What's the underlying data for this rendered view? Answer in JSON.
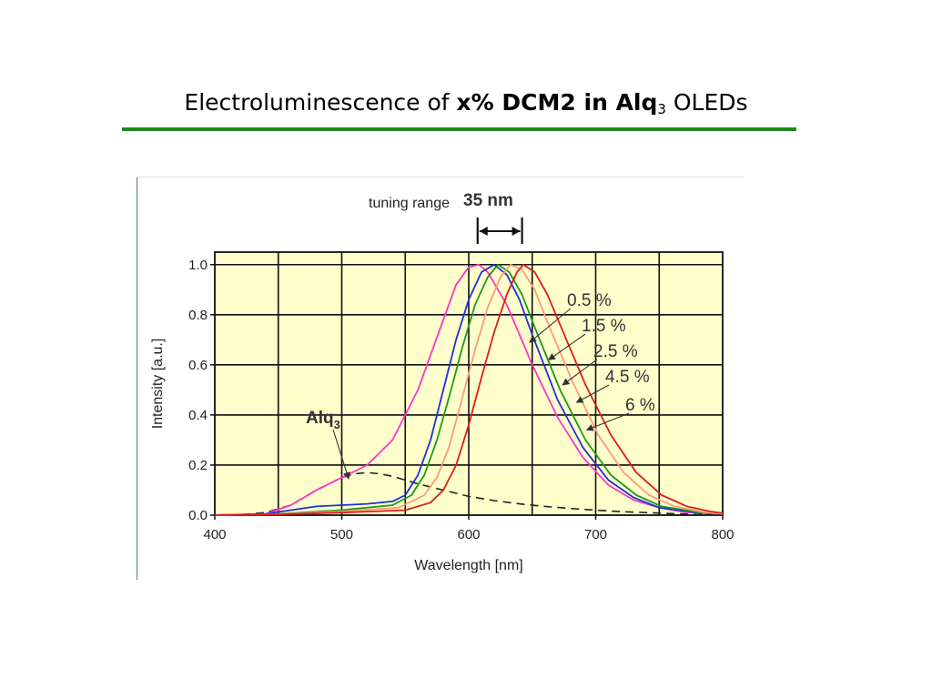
{
  "slide": {
    "title_pre": "Electroluminescence of ",
    "title_bold": "x% DCM2 in Alq",
    "title_sub": "3",
    "title_post": " OLEDs"
  },
  "chart_data": {
    "type": "line",
    "xlabel": "Wavelength [nm]",
    "ylabel": "Intensity [a.u.]",
    "xlim": [
      400,
      800
    ],
    "ylim": [
      0,
      1.05
    ],
    "xticks": [
      400,
      500,
      600,
      700,
      800
    ],
    "xtick_labels": [
      "400",
      "500",
      "600",
      "700",
      "800"
    ],
    "yticks": [
      0,
      0.2,
      0.4,
      0.6,
      0.8,
      1.0
    ],
    "ytick_labels": [
      "0.0",
      "0.2",
      "0.4",
      "0.6",
      "0.8",
      "1.0"
    ],
    "grid": true,
    "tuning_range_label": "tuning range",
    "tuning_range_value": "35 nm",
    "tuning_range_nm": [
      607,
      642
    ],
    "series": [
      {
        "name": "Alq",
        "name_sub": "3",
        "color": "#222222",
        "dashed": true,
        "points": [
          [
            400,
            0
          ],
          [
            420,
            0.002
          ],
          [
            440,
            0.01
          ],
          [
            460,
            0.04
          ],
          [
            480,
            0.1
          ],
          [
            500,
            0.15
          ],
          [
            510,
            0.165
          ],
          [
            520,
            0.17
          ],
          [
            530,
            0.165
          ],
          [
            540,
            0.155
          ],
          [
            560,
            0.125
          ],
          [
            580,
            0.1
          ],
          [
            600,
            0.075
          ],
          [
            620,
            0.058
          ],
          [
            640,
            0.045
          ],
          [
            660,
            0.035
          ],
          [
            680,
            0.027
          ],
          [
            700,
            0.02
          ],
          [
            720,
            0.014
          ],
          [
            740,
            0.01
          ],
          [
            760,
            0.006
          ],
          [
            780,
            0.003
          ],
          [
            800,
            0.001
          ]
        ]
      },
      {
        "name": "0.5 %",
        "color": "#ff33cc",
        "dashed": false,
        "label_anchor": [
          648,
          0.69
        ],
        "points": [
          [
            400,
            0
          ],
          [
            440,
            0.005
          ],
          [
            460,
            0.04
          ],
          [
            480,
            0.1
          ],
          [
            500,
            0.15
          ],
          [
            520,
            0.2
          ],
          [
            540,
            0.3
          ],
          [
            560,
            0.5
          ],
          [
            580,
            0.78
          ],
          [
            590,
            0.92
          ],
          [
            600,
            0.99
          ],
          [
            608,
            1.0
          ],
          [
            615,
            0.97
          ],
          [
            630,
            0.84
          ],
          [
            650,
            0.6
          ],
          [
            670,
            0.39
          ],
          [
            690,
            0.23
          ],
          [
            710,
            0.12
          ],
          [
            730,
            0.06
          ],
          [
            750,
            0.03
          ],
          [
            770,
            0.012
          ],
          [
            800,
            0.004
          ]
        ]
      },
      {
        "name": "1.5 %",
        "color": "#1f2fe0",
        "dashed": false,
        "label_anchor": [
          663,
          0.62
        ],
        "points": [
          [
            400,
            0
          ],
          [
            440,
            0.005
          ],
          [
            460,
            0.02
          ],
          [
            480,
            0.035
          ],
          [
            500,
            0.04
          ],
          [
            520,
            0.045
          ],
          [
            540,
            0.055
          ],
          [
            550,
            0.08
          ],
          [
            560,
            0.16
          ],
          [
            570,
            0.3
          ],
          [
            580,
            0.5
          ],
          [
            590,
            0.7
          ],
          [
            600,
            0.86
          ],
          [
            610,
            0.97
          ],
          [
            620,
            1.0
          ],
          [
            630,
            0.96
          ],
          [
            640,
            0.86
          ],
          [
            650,
            0.72
          ],
          [
            670,
            0.46
          ],
          [
            690,
            0.27
          ],
          [
            710,
            0.14
          ],
          [
            730,
            0.07
          ],
          [
            750,
            0.03
          ],
          [
            780,
            0.01
          ],
          [
            800,
            0.005
          ]
        ]
      },
      {
        "name": "2.5 %",
        "color": "#1a9a1a",
        "dashed": false,
        "label_anchor": [
          674,
          0.52
        ],
        "points": [
          [
            400,
            0
          ],
          [
            450,
            0.005
          ],
          [
            500,
            0.02
          ],
          [
            540,
            0.04
          ],
          [
            555,
            0.08
          ],
          [
            565,
            0.16
          ],
          [
            575,
            0.3
          ],
          [
            585,
            0.48
          ],
          [
            595,
            0.67
          ],
          [
            605,
            0.84
          ],
          [
            615,
            0.95
          ],
          [
            623,
            1.0
          ],
          [
            632,
            0.97
          ],
          [
            642,
            0.88
          ],
          [
            652,
            0.75
          ],
          [
            672,
            0.5
          ],
          [
            692,
            0.3
          ],
          [
            712,
            0.16
          ],
          [
            732,
            0.08
          ],
          [
            752,
            0.035
          ],
          [
            780,
            0.012
          ],
          [
            800,
            0.005
          ]
        ]
      },
      {
        "name": "4.5 %",
        "color": "#ff9a7a",
        "dashed": false,
        "label_anchor": [
          685,
          0.45
        ],
        "points": [
          [
            400,
            0
          ],
          [
            450,
            0.004
          ],
          [
            500,
            0.015
          ],
          [
            545,
            0.03
          ],
          [
            565,
            0.08
          ],
          [
            575,
            0.15
          ],
          [
            585,
            0.28
          ],
          [
            595,
            0.47
          ],
          [
            605,
            0.66
          ],
          [
            615,
            0.83
          ],
          [
            625,
            0.95
          ],
          [
            633,
            1.0
          ],
          [
            642,
            0.98
          ],
          [
            652,
            0.9
          ],
          [
            662,
            0.77
          ],
          [
            682,
            0.53
          ],
          [
            702,
            0.32
          ],
          [
            722,
            0.17
          ],
          [
            742,
            0.08
          ],
          [
            762,
            0.035
          ],
          [
            785,
            0.012
          ],
          [
            800,
            0.006
          ]
        ]
      },
      {
        "name": "6 %",
        "color": "#e01a1a",
        "dashed": false,
        "label_anchor": [
          693,
          0.34
        ],
        "points": [
          [
            400,
            0
          ],
          [
            450,
            0.003
          ],
          [
            500,
            0.01
          ],
          [
            550,
            0.02
          ],
          [
            570,
            0.05
          ],
          [
            580,
            0.1
          ],
          [
            590,
            0.2
          ],
          [
            600,
            0.36
          ],
          [
            610,
            0.55
          ],
          [
            620,
            0.73
          ],
          [
            630,
            0.88
          ],
          [
            638,
            0.97
          ],
          [
            643,
            1.0
          ],
          [
            652,
            0.97
          ],
          [
            662,
            0.88
          ],
          [
            672,
            0.76
          ],
          [
            692,
            0.52
          ],
          [
            712,
            0.32
          ],
          [
            732,
            0.17
          ],
          [
            752,
            0.08
          ],
          [
            772,
            0.035
          ],
          [
            790,
            0.015
          ],
          [
            800,
            0.008
          ]
        ]
      }
    ]
  }
}
